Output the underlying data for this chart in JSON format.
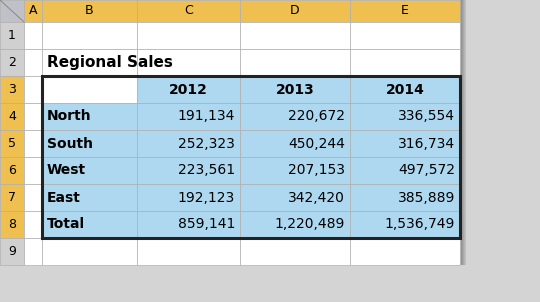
{
  "title": "Regional Sales",
  "col_headers": [
    "A",
    "B",
    "C",
    "D",
    "E"
  ],
  "row_labels": [
    "North",
    "South",
    "West",
    "East",
    "Total"
  ],
  "data": [
    [
      191134,
      220672,
      336554
    ],
    [
      252323,
      450244,
      316734
    ],
    [
      223561,
      207153,
      497572
    ],
    [
      192123,
      342420,
      385889
    ],
    [
      859141,
      1220489,
      1536749
    ]
  ],
  "header_bg": "#EFC050",
  "row_num_bg": "#EFC050",
  "cell_bg_blue": "#ADD8F0",
  "cell_bg_white": "#FFFFFF",
  "grid_color": "#B0B0B0",
  "outer_bg": "#D4D4D4",
  "corner_bg": "#C0C0C8",
  "table_border_color": "#222222",
  "font_size_data": 10,
  "font_size_header": 10,
  "font_size_title": 11,
  "font_size_col_letter": 9,
  "font_size_row_num": 9
}
